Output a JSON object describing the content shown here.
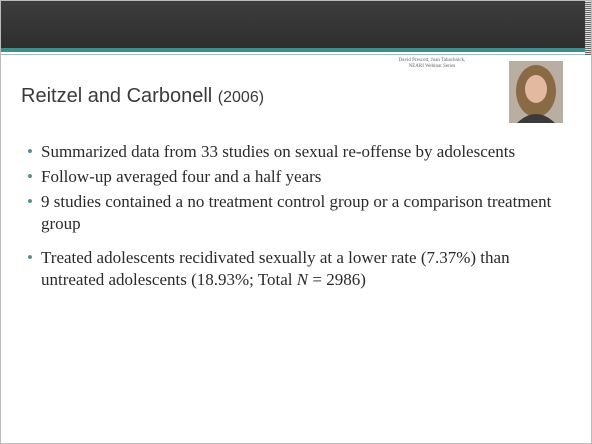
{
  "header": {
    "credit": "David Prescott, Joan Tabachnick, NEARI Webinar Series",
    "title": {
      "main": "Reitzel and Carbonell",
      "year": "(2006)"
    }
  },
  "bullets": [
    "Summarized data from 33 studies on sexual re-offense by adolescents",
    "Follow-up averaged four and a half years",
    "9 studies contained a no treatment control group or a comparison treatment group",
    {
      "parts": [
        "Treated adolescents recidivated sexually at a lower rate (7.37%) than untreated adolescents (18.93%; Total ",
        "N",
        " = 2986)"
      ]
    }
  ]
}
